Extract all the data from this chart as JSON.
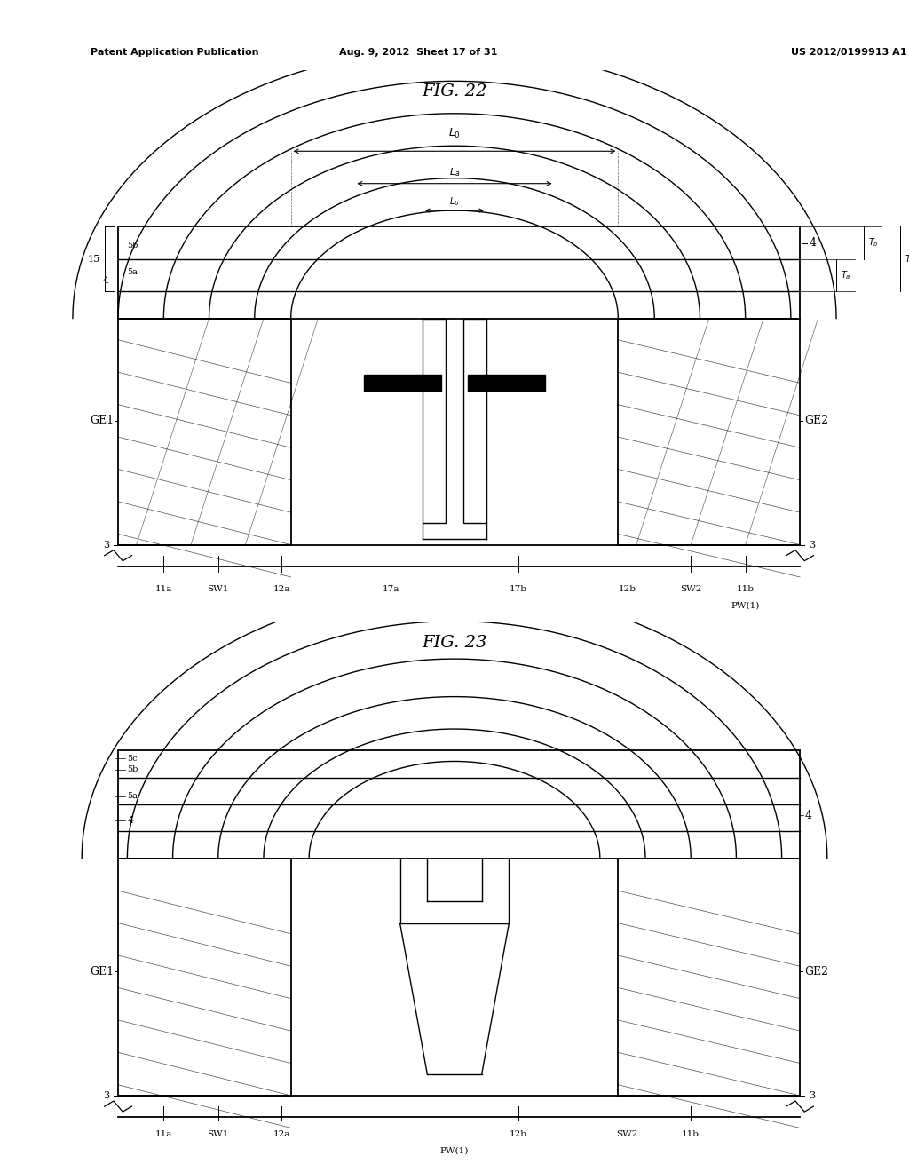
{
  "title_left": "Patent Application Publication",
  "title_mid": "Aug. 9, 2012  Sheet 17 of 31",
  "title_right": "US 2012/0199913 A1",
  "fig22_title": "FIG. 22",
  "fig23_title": "FIG. 23",
  "background_color": "#ffffff"
}
